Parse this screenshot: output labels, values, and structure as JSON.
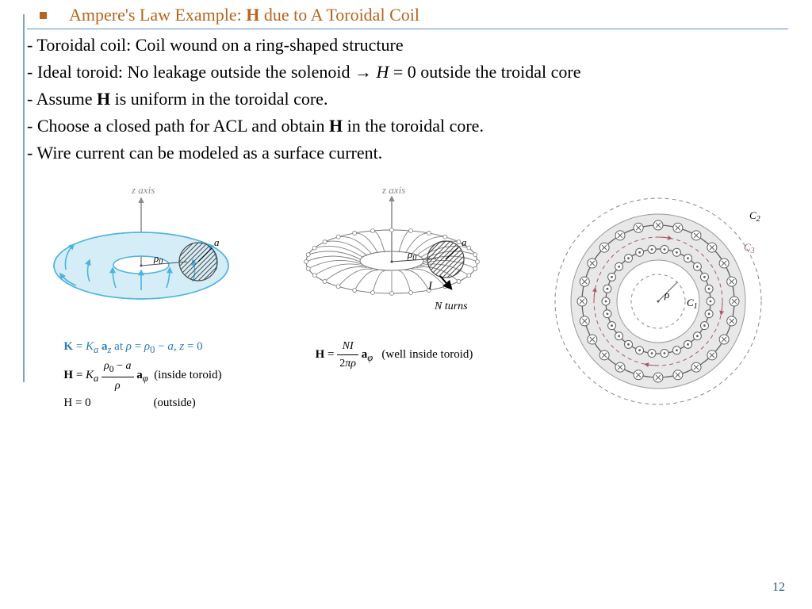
{
  "title": {
    "prefix": "Ampere's Law Example: ",
    "bold": "H",
    "suffix": " due to A Toroidal Coil",
    "color": "#b5651d",
    "fontsize": 22
  },
  "rule_color": "#5a8fc0",
  "accent_color": "#7ba7c7",
  "bullets": [
    "- Toroidal coil: Coil wound on a ring-shaped structure",
    "- Ideal toroid: No leakage outside the solenoid → H = 0 outside the troidal core",
    "- Assume H is uniform in the toroidal core.",
    "- Choose a closed path for ACL and obtain H in the toroidal core.",
    "- Wire current can be modeled as a surface current."
  ],
  "fig1": {
    "z_label": "z axis",
    "rho0": "ρ₀",
    "a": "a",
    "eq_k": "K = K_a  a_z  at ρ = ρ_0 − a, z = 0",
    "eq_h_in": "(inside toroid)",
    "eq_h_out_val": "H = 0",
    "eq_h_out": "(outside)",
    "torus_color": "#b8e3f2",
    "torus_stroke": "#4eb3e0",
    "arrow_color": "#4eb3e0",
    "axis_color": "#8a8a8a"
  },
  "fig2": {
    "z_label": "z axis",
    "rho0": "ρ₀",
    "a": "a",
    "I": "I",
    "N": "N turns",
    "eq_well": "(well inside toroid)",
    "stroke": "#707070",
    "axis_color": "#8a8a8a",
    "n_turns_drawn": 28
  },
  "fig3": {
    "c1": "C₁",
    "c2": "C₂",
    "c3": "C₃",
    "rho": "ρ",
    "outer_ring_r": 130,
    "inner_band_outer": 110,
    "inner_band_inner": 52,
    "band_fill": "#e8e8e8",
    "band_stroke": "#9a9a9a",
    "loop_outer_r": 96,
    "loop_inner_r": 66,
    "loop_stroke": "#606060",
    "dash_color": "#888888",
    "c3_color": "#a85a6a",
    "n_outer_loops": 24,
    "n_inner_loops": 26
  },
  "page_number": "12",
  "page_number_color": "#2c5a8a"
}
